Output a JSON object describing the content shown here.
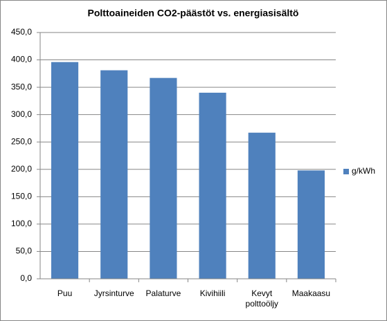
{
  "chart_data": {
    "type": "bar",
    "title": "Polttoaineiden CO2-päästöt vs. energiasisältö",
    "categories": [
      "Puu",
      "Jyrsinturve",
      "Palaturve",
      "Kivihiili",
      "Kevyt polttoöljy",
      "Maakaasu"
    ],
    "series": [
      {
        "name": "g/kWh",
        "color": "#4f81bd",
        "values": [
          396,
          381,
          367,
          340,
          267,
          198
        ]
      }
    ],
    "ylim": [
      0,
      450
    ],
    "yticks": [
      {
        "value": 0,
        "label": "0,0"
      },
      {
        "value": 50,
        "label": "50,0"
      },
      {
        "value": 100,
        "label": "100,0"
      },
      {
        "value": 150,
        "label": "150,0"
      },
      {
        "value": 200,
        "label": "200,0"
      },
      {
        "value": 250,
        "label": "250,0"
      },
      {
        "value": 300,
        "label": "300,0"
      },
      {
        "value": 350,
        "label": "350,0"
      },
      {
        "value": 400,
        "label": "400,0"
      },
      {
        "value": 450,
        "label": "450,0"
      }
    ],
    "grid": true,
    "legend": "right"
  }
}
